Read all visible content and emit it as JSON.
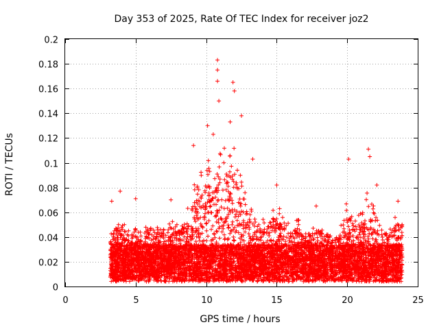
{
  "chart_data": {
    "type": "scatter",
    "title": "Day 353 of 2025, Rate Of TEC Index for receiver joz2",
    "xlabel": "GPS time / hours",
    "ylabel": "ROTI / TECUs",
    "xlim": [
      0,
      25
    ],
    "ylim": [
      0,
      0.2
    ],
    "x_ticks": [
      "0",
      "5",
      "10",
      "15",
      "20",
      "25"
    ],
    "y_ticks": [
      "0",
      "0.02",
      "0.04",
      "0.06",
      "0.08",
      "0.1",
      "0.12",
      "0.14",
      "0.16",
      "0.18",
      "0.2"
    ],
    "grid": true,
    "marker": "+",
    "color": "#ff0000",
    "x_range_of_data": [
      3.2,
      23.9
    ],
    "notable_points": [
      {
        "x": 3.3,
        "y": 0.069
      },
      {
        "x": 3.9,
        "y": 0.077
      },
      {
        "x": 5.0,
        "y": 0.071
      },
      {
        "x": 7.5,
        "y": 0.07
      },
      {
        "x": 9.1,
        "y": 0.114
      },
      {
        "x": 10.1,
        "y": 0.13
      },
      {
        "x": 10.5,
        "y": 0.123
      },
      {
        "x": 10.8,
        "y": 0.183
      },
      {
        "x": 10.8,
        "y": 0.175
      },
      {
        "x": 10.8,
        "y": 0.166
      },
      {
        "x": 10.9,
        "y": 0.15
      },
      {
        "x": 11.7,
        "y": 0.133
      },
      {
        "x": 11.9,
        "y": 0.165
      },
      {
        "x": 12.0,
        "y": 0.158
      },
      {
        "x": 12.5,
        "y": 0.138
      },
      {
        "x": 13.3,
        "y": 0.103
      },
      {
        "x": 15.0,
        "y": 0.082
      },
      {
        "x": 17.8,
        "y": 0.065
      },
      {
        "x": 20.1,
        "y": 0.103
      },
      {
        "x": 21.5,
        "y": 0.111
      },
      {
        "x": 21.6,
        "y": 0.105
      },
      {
        "x": 22.1,
        "y": 0.082
      },
      {
        "x": 23.6,
        "y": 0.069
      }
    ],
    "envelope": [
      [
        3.25,
        0.047
      ],
      [
        3.5,
        0.052
      ],
      [
        4.0,
        0.058
      ],
      [
        4.5,
        0.045
      ],
      [
        5.0,
        0.048
      ],
      [
        5.5,
        0.05
      ],
      [
        6.0,
        0.055
      ],
      [
        6.5,
        0.05
      ],
      [
        7.0,
        0.052
      ],
      [
        7.5,
        0.055
      ],
      [
        8.0,
        0.05
      ],
      [
        8.5,
        0.055
      ],
      [
        9.0,
        0.08
      ],
      [
        9.5,
        0.09
      ],
      [
        10.0,
        0.1
      ],
      [
        10.5,
        0.11
      ],
      [
        11.0,
        0.12
      ],
      [
        11.5,
        0.11
      ],
      [
        12.0,
        0.115
      ],
      [
        12.5,
        0.095
      ],
      [
        13.0,
        0.07
      ],
      [
        13.5,
        0.06
      ],
      [
        14.0,
        0.055
      ],
      [
        14.5,
        0.06
      ],
      [
        15.0,
        0.07
      ],
      [
        15.5,
        0.06
      ],
      [
        16.0,
        0.05
      ],
      [
        16.5,
        0.055
      ],
      [
        17.0,
        0.048
      ],
      [
        17.5,
        0.05
      ],
      [
        18.0,
        0.05
      ],
      [
        18.5,
        0.045
      ],
      [
        19.0,
        0.05
      ],
      [
        19.5,
        0.05
      ],
      [
        20.0,
        0.07
      ],
      [
        20.5,
        0.055
      ],
      [
        21.0,
        0.06
      ],
      [
        21.5,
        0.08
      ],
      [
        22.0,
        0.07
      ],
      [
        22.5,
        0.05
      ],
      [
        23.0,
        0.045
      ],
      [
        23.5,
        0.06
      ],
      [
        23.9,
        0.055
      ]
    ]
  }
}
